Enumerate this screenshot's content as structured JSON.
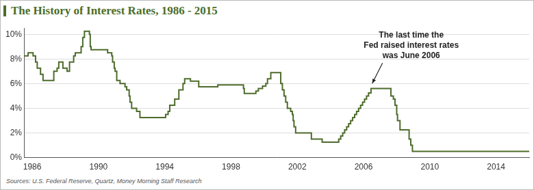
{
  "chart_data": {
    "type": "line",
    "title": "The History of Interest Rates, 1986 - 2015",
    "source": "Sources: U.S. Federal Reserve, Quartz, Money Morning Staff Research",
    "annotation": {
      "text": [
        "The last time the",
        "Fed raised interest rates",
        "was June 2006"
      ],
      "x": 2006.4,
      "y": 5.8
    },
    "line_style": "stepped",
    "color": "#4d6b2b",
    "grid": "y",
    "xlim": [
      1985.5,
      2016.0
    ],
    "xticks": [
      1986,
      1990,
      1994,
      1998,
      2002,
      2006,
      2010,
      2014
    ],
    "ylim": [
      0,
      10.5
    ],
    "yticks": [
      {
        "value": 0,
        "label": "0%"
      },
      {
        "value": 2,
        "label": "2%"
      },
      {
        "value": 4,
        "label": "4%"
      },
      {
        "value": 6,
        "label": "6%"
      },
      {
        "value": 8,
        "label": "8%"
      },
      {
        "value": 10,
        "label": "10%"
      }
    ],
    "x": [
      1985.5,
      1985.75,
      1986.05,
      1986.2,
      1986.3,
      1986.5,
      1986.65,
      1987.3,
      1987.5,
      1987.6,
      1987.85,
      1988.1,
      1988.25,
      1988.5,
      1988.6,
      1988.95,
      1989.05,
      1989.15,
      1989.45,
      1989.5,
      1989.55,
      1990.55,
      1990.8,
      1990.85,
      1990.95,
      1991.0,
      1991.1,
      1991.3,
      1991.6,
      1991.7,
      1991.85,
      1991.9,
      1992.0,
      1992.3,
      1992.5,
      1994.05,
      1994.2,
      1994.3,
      1994.6,
      1994.85,
      1995.1,
      1995.2,
      1995.55,
      1996.05,
      1997.2,
      1998.75,
      1998.8,
      1999.5,
      1999.65,
      1999.9,
      2000.1,
      2000.2,
      2000.4,
      2001.0,
      2001.1,
      2001.2,
      2001.3,
      2001.4,
      2001.6,
      2001.7,
      2001.75,
      2001.8,
      2001.9,
      2002.85,
      2003.5,
      2004.5,
      2004.62,
      2004.74,
      2004.86,
      2004.98,
      2005.1,
      2005.22,
      2005.34,
      2005.46,
      2005.58,
      2005.7,
      2005.82,
      2005.94,
      2006.06,
      2006.18,
      2006.3,
      2006.45,
      2007.65,
      2007.8,
      2007.9,
      2008.0,
      2008.05,
      2008.2,
      2008.75,
      2008.85,
      2008.95,
      2016.0
    ],
    "values": [
      8.25,
      8.5,
      8.25,
      7.75,
      7.25,
      6.75,
      6.25,
      7.0,
      7.25,
      7.75,
      7.25,
      7.0,
      7.75,
      8.25,
      8.5,
      9.0,
      9.75,
      10.25,
      10.0,
      9.0,
      8.75,
      8.5,
      8.25,
      7.75,
      7.25,
      7.0,
      6.25,
      6.0,
      5.75,
      5.5,
      5.0,
      4.5,
      4.0,
      3.75,
      3.25,
      3.5,
      3.75,
      4.25,
      4.75,
      5.5,
      6.0,
      6.4,
      6.2,
      5.75,
      5.9,
      5.6,
      5.2,
      5.4,
      5.6,
      5.8,
      6.0,
      6.4,
      6.9,
      6.0,
      5.5,
      5.0,
      4.5,
      4.0,
      3.75,
      3.5,
      3.0,
      2.5,
      2.0,
      1.5,
      1.25,
      1.5,
      1.75,
      2.0,
      2.25,
      2.5,
      2.75,
      3.0,
      3.25,
      3.5,
      3.75,
      4.0,
      4.25,
      4.5,
      4.75,
      5.0,
      5.25,
      5.6,
      5.0,
      4.75,
      4.25,
      3.5,
      3.0,
      2.25,
      1.5,
      1.0,
      0.5,
      0.5
    ]
  }
}
